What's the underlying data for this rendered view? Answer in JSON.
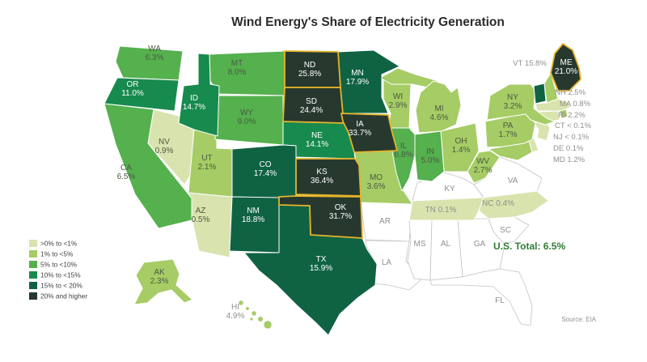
{
  "title": "Wind Energy's Share of Electricity Generation",
  "us_total_label": "U.S. Total: 6.5%",
  "source_label": "Source: EIA",
  "colors": {
    "buckets": [
      "#d9e3ae",
      "#a6cc65",
      "#55b04e",
      "#178a4d",
      "#0f6343",
      "#27392f"
    ],
    "no_data_fill": "#ffffff",
    "no_data_border": "#c3c3c3",
    "state_border": "#ffffff",
    "highlight_border": "#e6b42c",
    "label_on_dark": "#ffffff",
    "label_on_light": "#4a5a43",
    "label_gray": "#8f8f8f",
    "legend_text": "#3f3f3f",
    "total_color": "#2e7d35"
  },
  "legend": {
    "items": [
      {
        "label": ">0% to <1%"
      },
      {
        "label": "1% to <5%"
      },
      {
        "label": "5% to <10%"
      },
      {
        "label": "10% to <15%"
      },
      {
        "label": "15% to < 20%"
      },
      {
        "label": "20% and higher"
      }
    ]
  },
  "chart_data": {
    "type": "heatmap",
    "title": "Wind Energy's Share of Electricity Generation",
    "unit": "wind share of state electricity generation, percent",
    "us_total_pct": 6.5,
    "source": "EIA",
    "legend_buckets": [
      ">0% to <1%",
      "1% to <5%",
      "5% to <10%",
      "10% to <15%",
      "15% to < 20%",
      "20% and higher"
    ],
    "states": [
      {
        "abbr": "WA",
        "pct": 6.3,
        "label": "6.3%"
      },
      {
        "abbr": "OR",
        "pct": 11.0,
        "label": "11.0%"
      },
      {
        "abbr": "CA",
        "pct": 6.5,
        "label": "6.5%"
      },
      {
        "abbr": "NV",
        "pct": 0.9,
        "label": "0.9%"
      },
      {
        "abbr": "ID",
        "pct": 14.7,
        "label": "14.7%"
      },
      {
        "abbr": "MT",
        "pct": 8.0,
        "label": "8.0%"
      },
      {
        "abbr": "WY",
        "pct": 9.0,
        "label": "9.0%"
      },
      {
        "abbr": "UT",
        "pct": 2.1,
        "label": "2.1%"
      },
      {
        "abbr": "AZ",
        "pct": 0.5,
        "label": "0.5%"
      },
      {
        "abbr": "CO",
        "pct": 17.4,
        "label": "17.4%"
      },
      {
        "abbr": "NM",
        "pct": 18.8,
        "label": "18.8%"
      },
      {
        "abbr": "ND",
        "pct": 25.8,
        "label": "25.8%"
      },
      {
        "abbr": "SD",
        "pct": 24.4,
        "label": "24.4%"
      },
      {
        "abbr": "NE",
        "pct": 14.1,
        "label": "14.1%"
      },
      {
        "abbr": "KS",
        "pct": 36.4,
        "label": "36.4%"
      },
      {
        "abbr": "OK",
        "pct": 31.7,
        "label": "31.7%"
      },
      {
        "abbr": "TX",
        "pct": 15.9,
        "label": "15.9%"
      },
      {
        "abbr": "MN",
        "pct": 17.9,
        "label": "17.9%"
      },
      {
        "abbr": "IA",
        "pct": 33.7,
        "label": "33.7%"
      },
      {
        "abbr": "MO",
        "pct": 3.6,
        "label": "3.6%"
      },
      {
        "abbr": "WI",
        "pct": 2.9,
        "label": "2.9%"
      },
      {
        "abbr": "IL",
        "pct": 6.8,
        "label": "6.8%"
      },
      {
        "abbr": "MI",
        "pct": 4.6,
        "label": "4.6%"
      },
      {
        "abbr": "IN",
        "pct": 5.0,
        "label": "5.0%"
      },
      {
        "abbr": "OH",
        "pct": 1.4,
        "label": "1.4%"
      },
      {
        "abbr": "WV",
        "pct": 2.7,
        "label": "2.7%"
      },
      {
        "abbr": "PA",
        "pct": 1.7,
        "label": "1.7%"
      },
      {
        "abbr": "NY",
        "pct": 3.2,
        "label": "3.2%"
      },
      {
        "abbr": "VT",
        "pct": 15.8,
        "label": "15.8%"
      },
      {
        "abbr": "NH",
        "pct": 2.5,
        "label": "2.5%"
      },
      {
        "abbr": "ME",
        "pct": 21.0,
        "label": "21.0%"
      },
      {
        "abbr": "MA",
        "pct": 0.8,
        "label": "0.8%"
      },
      {
        "abbr": "RI",
        "pct": 2.2,
        "label": "2.2%"
      },
      {
        "abbr": "CT",
        "pct": 0.05,
        "label": "< 0.1%"
      },
      {
        "abbr": "NJ",
        "pct": 0.05,
        "label": "< 0.1%"
      },
      {
        "abbr": "DE",
        "pct": 0.1,
        "label": "0.1%"
      },
      {
        "abbr": "MD",
        "pct": 1.2,
        "label": "1.2%"
      },
      {
        "abbr": "TN",
        "pct": 0.1,
        "label": "0.1%"
      },
      {
        "abbr": "NC",
        "pct": 0.4,
        "label": "0.4%"
      },
      {
        "abbr": "VA",
        "pct": null,
        "label": null
      },
      {
        "abbr": "KY",
        "pct": null,
        "label": null
      },
      {
        "abbr": "SC",
        "pct": null,
        "label": null
      },
      {
        "abbr": "AR",
        "pct": null,
        "label": null
      },
      {
        "abbr": "LA",
        "pct": null,
        "label": null
      },
      {
        "abbr": "MS",
        "pct": null,
        "label": null
      },
      {
        "abbr": "AL",
        "pct": null,
        "label": null
      },
      {
        "abbr": "GA",
        "pct": null,
        "label": null
      },
      {
        "abbr": "FL",
        "pct": null,
        "label": null
      },
      {
        "abbr": "AK",
        "pct": 2.3,
        "label": "2.3%"
      },
      {
        "abbr": "HI",
        "pct": 4.9,
        "label": "4.9%"
      }
    ]
  }
}
